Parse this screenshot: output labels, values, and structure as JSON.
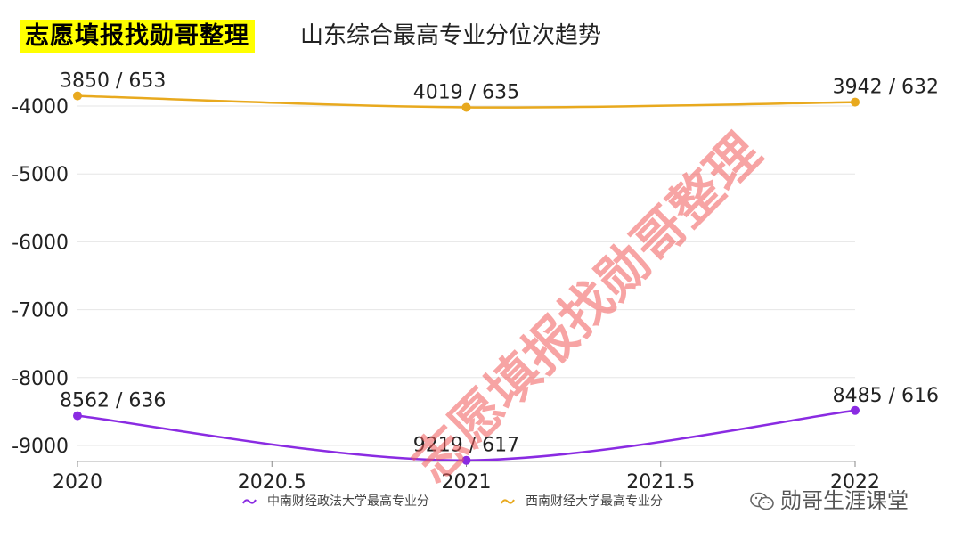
{
  "header": {
    "brand": "志愿填报找勋哥整理",
    "subtitle": "山东综合最高专业分位次趋势"
  },
  "watermark": "志愿填报找勋哥整理",
  "footer": {
    "account": "勋哥生涯课堂",
    "icon": "wechat-icon"
  },
  "colors": {
    "zhongnan": "#8a2be2",
    "xinan": "#e8a91e",
    "grid": "#e6e6e6",
    "axis": "#333333"
  },
  "chart_data": {
    "type": "line",
    "title": "",
    "xlabel": "",
    "ylabel": "",
    "xlim": [
      2020,
      2022
    ],
    "ylim": [
      -9000,
      -4000
    ],
    "x_ticks": [
      2020,
      2020.5,
      2021,
      2021.5,
      2022
    ],
    "x_tick_labels": [
      "2020",
      "2020.5",
      "2021",
      "2021.5",
      "2022"
    ],
    "y_ticks": [
      -4000,
      -5000,
      -6000,
      -7000,
      -8000,
      -9000
    ],
    "y_tick_labels": [
      "-4000",
      "-5000",
      "-6000",
      "-7000",
      "-8000",
      "-9000"
    ],
    "grid": true,
    "legend_position": "bottom",
    "series": [
      {
        "name": "中南财经政法大学最高专业分",
        "color": "#8a2be2",
        "x": [
          2020,
          2021,
          2022
        ],
        "values": [
          -8562,
          -9219,
          -8485
        ],
        "labels": [
          "8562 / 636",
          "9219 / 617",
          "8485 / 616"
        ]
      },
      {
        "name": "西南财经大学最高专业分",
        "color": "#e8a91e",
        "x": [
          2020,
          2021,
          2022
        ],
        "values": [
          -3850,
          -4019,
          -3942
        ],
        "labels": [
          "3850 / 653",
          "4019 / 635",
          "3942 / 632"
        ]
      }
    ]
  }
}
